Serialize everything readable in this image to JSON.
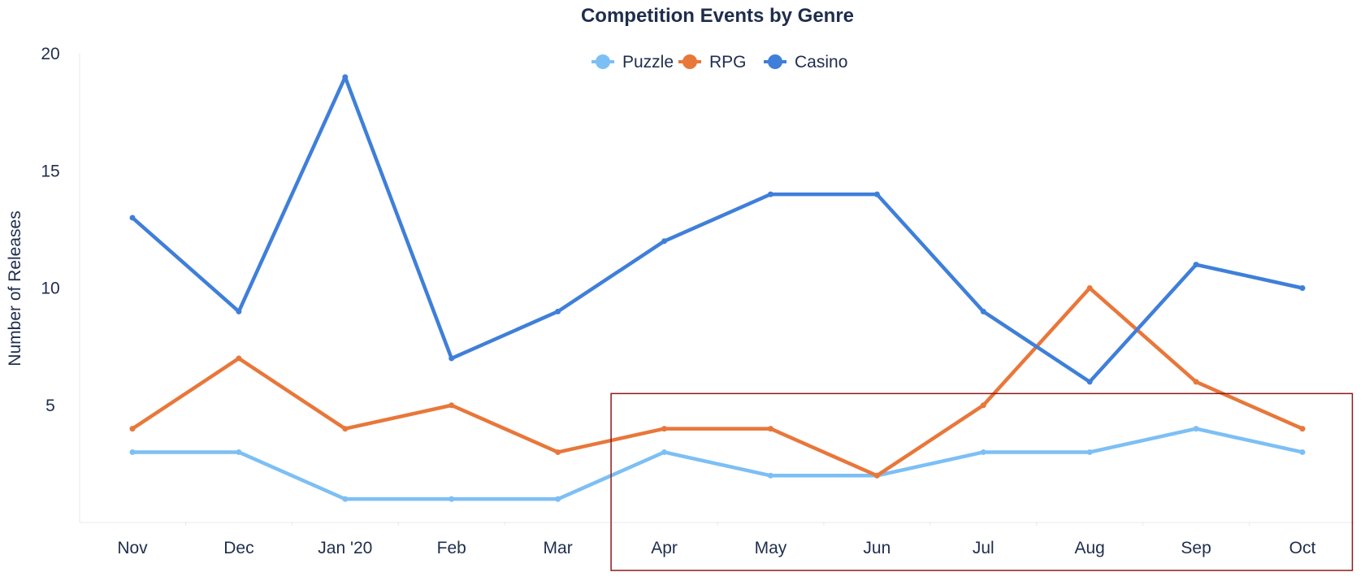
{
  "chart_data": {
    "type": "line",
    "title": "Competition Events by Genre",
    "xlabel": "",
    "ylabel": "Number of Releases",
    "categories": [
      "Nov",
      "Dec",
      "Jan '20",
      "Feb",
      "Mar",
      "Apr",
      "May",
      "Jun",
      "Jul",
      "Aug",
      "Sep",
      "Oct"
    ],
    "ylim": [
      0,
      20
    ],
    "yticks": [
      5,
      10,
      15,
      20
    ],
    "grid": false,
    "legend_position": "top-center",
    "series": [
      {
        "name": "Puzzle",
        "color": "#7cbff5",
        "values": [
          3,
          3,
          1,
          1,
          1,
          3,
          2,
          2,
          3,
          3,
          4,
          3
        ]
      },
      {
        "name": "RPG",
        "color": "#e8773a",
        "values": [
          4,
          7,
          4,
          5,
          3,
          4,
          4,
          2,
          5,
          10,
          6,
          4
        ]
      },
      {
        "name": "Casino",
        "color": "#3f7fd9",
        "values": [
          13,
          9,
          19,
          7,
          9,
          12,
          14,
          14,
          9,
          6,
          11,
          10
        ]
      }
    ],
    "annotations": [
      {
        "type": "highlight-box",
        "from_category": "Apr",
        "to_category": "Oct",
        "y_from": 0,
        "y_to": 5.5,
        "color": "#8b1a1a"
      }
    ]
  }
}
